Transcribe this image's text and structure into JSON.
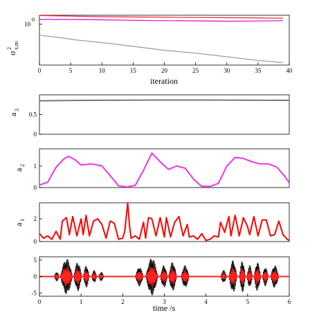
{
  "chart_data": [
    {
      "type": "line",
      "panel": "variance",
      "xlabel": "iteration",
      "ylabel": "σ",
      "ylabel_sup": "2",
      "ylabel_sub": "x,m",
      "log_y": true,
      "xlim": [
        0,
        40
      ],
      "ylim": [
        0.06,
        1.3
      ],
      "xticks": [
        0,
        5,
        10,
        15,
        20,
        25,
        30,
        35,
        40
      ],
      "ytick_labels": [
        {
          "value": 1,
          "base": "10",
          "exp": "0"
        }
      ],
      "series": [
        {
          "color": "#ff2020",
          "x": [
            0,
            5,
            10,
            15,
            20,
            25,
            30,
            35,
            39
          ],
          "y": [
            1.28,
            1.23,
            1.19,
            1.17,
            1.15,
            1.13,
            1.12,
            1.1,
            1.08
          ]
        },
        {
          "color": "#dd00dd",
          "x": [
            0,
            5,
            10,
            15,
            20,
            25,
            30,
            35,
            39
          ],
          "y": [
            1.0,
            1.0,
            0.98,
            0.95,
            0.93,
            0.92,
            0.9,
            0.91,
            0.93
          ]
        },
        {
          "color": "#999999",
          "x": [
            0,
            3,
            6,
            10,
            15,
            20,
            25,
            30,
            35,
            38,
            39
          ],
          "y": [
            0.38,
            0.33,
            0.28,
            0.24,
            0.19,
            0.15,
            0.125,
            0.1,
            0.08,
            0.072,
            0.07
          ]
        }
      ]
    },
    {
      "type": "line",
      "panel": "a3",
      "ylabel": "a",
      "ylabel_sub": "3",
      "xlim": [
        0,
        6
      ],
      "ylim": [
        0,
        1.0
      ],
      "yticks": [
        0,
        0.5
      ],
      "series": [
        {
          "color": "#777777",
          "x": [
            0,
            1,
            2,
            3,
            4,
            5,
            6
          ],
          "y": [
            0.85,
            0.86,
            0.865,
            0.868,
            0.868,
            0.865,
            0.86
          ]
        }
      ]
    },
    {
      "type": "line",
      "panel": "a2",
      "ylabel": "a",
      "ylabel_sub": "2",
      "xlim": [
        0,
        6
      ],
      "ylim": [
        0,
        1.8
      ],
      "yticks": [
        0,
        1
      ],
      "series": [
        {
          "color": "#ee33ee",
          "x": [
            0,
            0.2,
            0.4,
            0.6,
            0.7,
            0.85,
            1.0,
            1.25,
            1.5,
            1.7,
            1.9,
            2.1,
            2.3,
            2.5,
            2.7,
            2.9,
            3.1,
            3.3,
            3.5,
            3.7,
            3.9,
            4.1,
            4.3,
            4.5,
            4.7,
            4.9,
            5.1,
            5.3,
            5.5,
            5.7,
            5.9,
            6.0
          ],
          "y": [
            0.12,
            0.25,
            0.95,
            1.35,
            1.45,
            1.3,
            1.05,
            1.1,
            1.0,
            0.55,
            0.08,
            0.03,
            0.1,
            0.8,
            1.6,
            1.2,
            0.85,
            1.0,
            0.9,
            0.4,
            0.05,
            0.05,
            0.2,
            1.0,
            1.4,
            1.35,
            1.2,
            1.1,
            1.1,
            0.95,
            0.5,
            0.22
          ]
        }
      ]
    },
    {
      "type": "line",
      "panel": "a1",
      "ylabel": "a",
      "ylabel_sub": "1",
      "xlim": [
        0,
        6
      ],
      "ylim": [
        0,
        3.4
      ],
      "yticks": [
        0,
        2
      ],
      "series": [
        {
          "color": "#ff0000",
          "x": [
            0,
            0.1,
            0.2,
            0.3,
            0.4,
            0.5,
            0.55,
            0.65,
            0.72,
            0.8,
            0.9,
            1.0,
            1.05,
            1.12,
            1.2,
            1.3,
            1.4,
            1.5,
            1.6,
            1.7,
            1.8,
            1.9,
            2.0,
            2.05,
            2.12,
            2.16,
            2.2,
            2.3,
            2.4,
            2.5,
            2.55,
            2.62,
            2.7,
            2.8,
            2.9,
            3.0,
            3.05,
            3.15,
            3.25,
            3.35,
            3.45,
            3.55,
            3.6,
            3.7,
            3.8,
            3.9,
            4.0,
            4.1,
            4.2,
            4.3,
            4.35,
            4.45,
            4.55,
            4.6,
            4.7,
            4.8,
            4.9,
            5.0,
            5.05,
            5.15,
            5.25,
            5.35,
            5.45,
            5.55,
            5.65,
            5.75,
            5.85,
            5.95,
            6.0
          ],
          "y": [
            0.7,
            0.3,
            0.5,
            0.2,
            0.9,
            0.2,
            1.8,
            2.1,
            0.6,
            2.2,
            0.5,
            2.0,
            0.6,
            2.3,
            0.5,
            1.8,
            2.0,
            1.5,
            0.3,
            1.8,
            1.6,
            0.2,
            0.3,
            0.9,
            3.4,
            1.5,
            0.3,
            0.5,
            0.2,
            1.7,
            0.3,
            2.1,
            2.0,
            0.5,
            2.1,
            0.4,
            2.1,
            0.4,
            1.7,
            2.2,
            0.5,
            1.5,
            0.4,
            0.5,
            0.2,
            0.7,
            0.1,
            0.2,
            0.5,
            0.4,
            1.7,
            0.8,
            2.2,
            0.5,
            2.3,
            0.5,
            2.1,
            1.3,
            0.6,
            2.2,
            0.5,
            1.9,
            1.9,
            0.5,
            0.6,
            1.8,
            0.6,
            0.2,
            0.1
          ]
        }
      ]
    },
    {
      "type": "line",
      "panel": "waveform",
      "xlabel": "time /s",
      "xlim": [
        0,
        6
      ],
      "ylim": [
        -6,
        6
      ],
      "xticks": [
        0,
        1,
        2,
        3,
        4,
        5,
        6
      ],
      "yticks": [
        -5,
        0,
        5
      ],
      "bursts": [
        {
          "t0": 0.35,
          "t1": 0.48,
          "amp": 1.5
        },
        {
          "t0": 0.5,
          "t1": 0.8,
          "amp": 5.5
        },
        {
          "t0": 0.82,
          "t1": 1.02,
          "amp": 4.5
        },
        {
          "t0": 1.05,
          "t1": 1.2,
          "amp": 3.5
        },
        {
          "t0": 1.25,
          "t1": 1.38,
          "amp": 2.0
        },
        {
          "t0": 1.42,
          "t1": 1.55,
          "amp": 1.5
        },
        {
          "t0": 2.3,
          "t1": 2.5,
          "amp": 3.0
        },
        {
          "t0": 2.55,
          "t1": 2.85,
          "amp": 5.8
        },
        {
          "t0": 2.9,
          "t1": 3.08,
          "amp": 3.5
        },
        {
          "t0": 3.1,
          "t1": 3.3,
          "amp": 4.5
        },
        {
          "t0": 3.4,
          "t1": 3.6,
          "amp": 3.5
        },
        {
          "t0": 4.35,
          "t1": 4.5,
          "amp": 2.0
        },
        {
          "t0": 4.55,
          "t1": 4.75,
          "amp": 5.0
        },
        {
          "t0": 4.8,
          "t1": 4.95,
          "amp": 5.0
        },
        {
          "t0": 4.98,
          "t1": 5.12,
          "amp": 3.5
        },
        {
          "t0": 5.15,
          "t1": 5.32,
          "amp": 4.5
        },
        {
          "t0": 5.35,
          "t1": 5.5,
          "amp": 3.0
        },
        {
          "t0": 5.55,
          "t1": 5.75,
          "amp": 3.5
        }
      ],
      "series": [
        {
          "color": "#000000",
          "kind": "signal"
        },
        {
          "color": "#ff2020",
          "kind": "estimate"
        }
      ]
    }
  ]
}
